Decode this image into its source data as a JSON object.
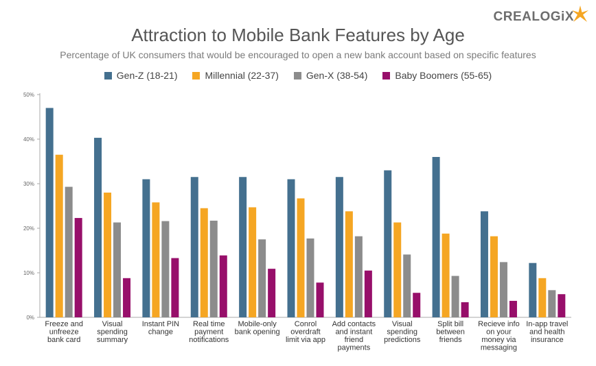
{
  "brand": {
    "name": "CREALOGiX"
  },
  "colors": {
    "gen_z": "#44708f",
    "millennial": "#f5a623",
    "gen_x": "#8c8c8c",
    "boomers": "#970f6a",
    "axis": "#aaaaaa",
    "star": "#f5a623"
  },
  "chart_data": {
    "type": "bar",
    "title": "Attraction to Mobile Bank Features by Age",
    "subtitle": "Percentage of UK consumers that would be encouraged to open a new bank account based on specific features",
    "xlabel": "",
    "ylabel": "",
    "ylim": [
      0,
      50
    ],
    "yticks": [
      "0%",
      "10%",
      "20%",
      "30%",
      "40%",
      "50%"
    ],
    "legend_position": "top-center",
    "grid": false,
    "categories": [
      [
        "Freeze and",
        "unfreeze",
        "bank card"
      ],
      [
        "Visual",
        "spending",
        "summary"
      ],
      [
        "Instant PIN",
        "change"
      ],
      [
        "Real time",
        "payment",
        "notifications"
      ],
      [
        "Mobile-only",
        "bank opening"
      ],
      [
        "Conrol",
        "overdraft",
        "limit via app"
      ],
      [
        "Add contacts",
        "and instant",
        "friend",
        "payments"
      ],
      [
        "Visual",
        "spending",
        "predictions"
      ],
      [
        "Split bill",
        "between",
        "friends"
      ],
      [
        "Recieve info",
        "on your",
        "money via",
        "messaging"
      ],
      [
        "In-app travel",
        "and health",
        "insurance"
      ]
    ],
    "series": [
      {
        "name": "Gen-Z (18-21)",
        "values": [
          47,
          40.3,
          31,
          31.5,
          31.5,
          31,
          31.5,
          33,
          36,
          23.8,
          12.2
        ]
      },
      {
        "name": "Millennial (22-37)",
        "values": [
          36.5,
          28,
          25.8,
          24.5,
          24.7,
          26.7,
          23.8,
          21.3,
          18.8,
          18.2,
          8.8
        ]
      },
      {
        "name": "Gen-X (38-54)",
        "values": [
          29.3,
          21.3,
          21.6,
          21.7,
          17.5,
          17.7,
          18.2,
          14.1,
          9.3,
          12.4,
          6.1
        ]
      },
      {
        "name": "Baby Boomers (55-65)",
        "values": [
          22.3,
          8.8,
          13.3,
          13.9,
          10.9,
          7.8,
          10.5,
          5.5,
          3.4,
          3.7,
          5.2
        ]
      }
    ]
  }
}
